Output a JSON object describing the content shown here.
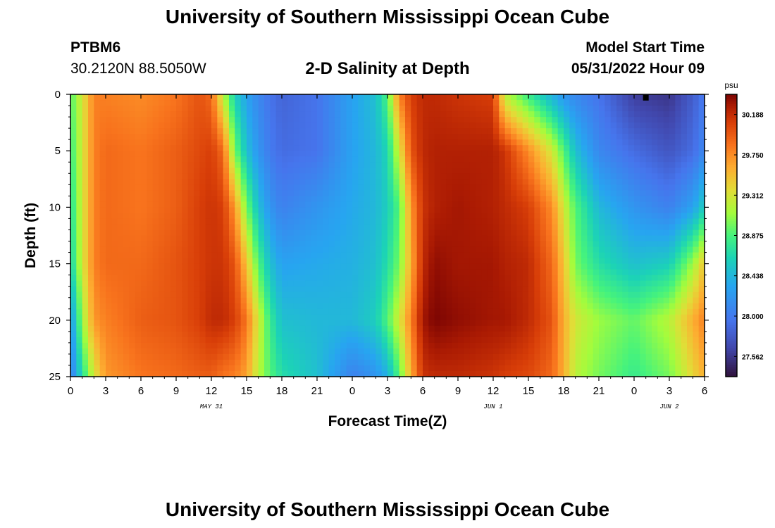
{
  "page": {
    "title_top": "University of Southern Mississippi Ocean Cube",
    "title_bottom": "University of Southern Mississippi Ocean Cube",
    "station": "PTBM6",
    "coordinates": "30.2120N  88.5050W",
    "plot_title": "2-D Salinity at Depth",
    "model_start_label": "Model Start Time",
    "model_start_time": "05/31/2022 Hour 09"
  },
  "chart_data": {
    "type": "heatmap",
    "title": "2-D Salinity at Depth",
    "xlabel": "Forecast Time(Z)",
    "ylabel": "Depth (ft)",
    "x_unit": "hours since 05/31 00Z",
    "xlim": [
      0,
      54
    ],
    "ylim": [
      0,
      25
    ],
    "y_inverted": true,
    "x_ticks": [
      0,
      3,
      6,
      9,
      12,
      15,
      18,
      21,
      24,
      27,
      30,
      33,
      36,
      39,
      42,
      45,
      48,
      51,
      54
    ],
    "x_tick_labels": [
      "0",
      "3",
      "6",
      "9",
      "12",
      "15",
      "18",
      "21",
      "0",
      "3",
      "6",
      "9",
      "12",
      "15",
      "18",
      "21",
      "0",
      "3",
      "6"
    ],
    "y_ticks": [
      0,
      5,
      10,
      15,
      20,
      25
    ],
    "y_tick_labels": [
      "0",
      "5",
      "10",
      "15",
      "20",
      "25"
    ],
    "date_labels": [
      {
        "text": "MAY 31",
        "x": 12
      },
      {
        "text": "JUN 1",
        "x": 36
      },
      {
        "text": "JUN 2",
        "x": 51
      }
    ],
    "colorbar": {
      "unit": "psu",
      "min": 27.343,
      "max": 30.407,
      "ticks": [
        27.562,
        28.0,
        28.438,
        28.875,
        29.312,
        29.75,
        30.188
      ],
      "tick_labels": [
        "27.562",
        "28.000",
        "28.438",
        "28.875",
        "29.312",
        "29.750",
        "30.188"
      ]
    },
    "marker": {
      "x": 49,
      "y": 0.3
    },
    "profiles": [
      {
        "x": 0,
        "values": [
          28.9,
          28.8,
          28.7,
          28.6,
          28.2,
          28.0
        ]
      },
      {
        "x": 1,
        "values": [
          29.3,
          29.3,
          29.3,
          29.3,
          29.1,
          28.7
        ]
      },
      {
        "x": 2,
        "values": [
          29.8,
          29.8,
          29.8,
          29.8,
          29.7,
          29.3
        ]
      },
      {
        "x": 3,
        "values": [
          29.8,
          29.9,
          29.9,
          29.9,
          29.8,
          29.7
        ]
      },
      {
        "x": 6,
        "values": [
          29.75,
          29.85,
          29.85,
          29.9,
          29.95,
          29.85
        ]
      },
      {
        "x": 9,
        "values": [
          29.85,
          29.95,
          29.95,
          30.0,
          30.0,
          29.9
        ]
      },
      {
        "x": 11,
        "values": [
          30.0,
          30.05,
          30.1,
          30.1,
          30.1,
          29.95
        ]
      },
      {
        "x": 12,
        "values": [
          29.9,
          30.1,
          30.15,
          30.15,
          30.2,
          29.95
        ]
      },
      {
        "x": 13,
        "values": [
          29.2,
          29.9,
          30.1,
          30.15,
          30.2,
          29.85
        ]
      },
      {
        "x": 14,
        "values": [
          28.6,
          29.0,
          29.7,
          30.0,
          30.1,
          29.8
        ]
      },
      {
        "x": 15,
        "values": [
          28.3,
          28.5,
          29.0,
          29.5,
          29.85,
          29.65
        ]
      },
      {
        "x": 16,
        "values": [
          28.1,
          28.2,
          28.5,
          28.9,
          29.3,
          29.2
        ]
      },
      {
        "x": 17,
        "values": [
          27.95,
          28.0,
          28.2,
          28.5,
          28.8,
          28.9
        ]
      },
      {
        "x": 18,
        "values": [
          27.85,
          27.9,
          28.05,
          28.3,
          28.5,
          28.7
        ]
      },
      {
        "x": 21,
        "values": [
          27.95,
          27.95,
          28.2,
          28.35,
          28.45,
          28.5
        ]
      },
      {
        "x": 24,
        "values": [
          28.3,
          28.3,
          28.35,
          28.4,
          28.45,
          28.05
        ]
      },
      {
        "x": 26,
        "values": [
          28.5,
          28.45,
          28.45,
          28.5,
          28.6,
          28.2
        ]
      },
      {
        "x": 27,
        "values": [
          28.9,
          28.65,
          28.6,
          28.7,
          28.9,
          28.4
        ]
      },
      {
        "x": 28,
        "values": [
          29.8,
          29.3,
          28.9,
          29.0,
          29.3,
          28.9
        ]
      },
      {
        "x": 29,
        "values": [
          30.1,
          30.0,
          29.7,
          29.6,
          29.8,
          29.6
        ]
      },
      {
        "x": 30,
        "values": [
          30.2,
          30.2,
          30.15,
          30.2,
          30.3,
          30.15
        ]
      },
      {
        "x": 31,
        "values": [
          30.2,
          30.25,
          30.25,
          30.35,
          30.4,
          30.2
        ]
      },
      {
        "x": 33,
        "values": [
          30.15,
          30.25,
          30.3,
          30.3,
          30.35,
          30.2
        ]
      },
      {
        "x": 36,
        "values": [
          30.1,
          30.25,
          30.25,
          30.3,
          30.3,
          30.15
        ]
      },
      {
        "x": 37,
        "values": [
          29.2,
          30.15,
          30.2,
          30.25,
          30.3,
          30.1
        ]
      },
      {
        "x": 39,
        "values": [
          28.8,
          29.75,
          30.1,
          30.2,
          30.2,
          30.05
        ]
      },
      {
        "x": 41,
        "values": [
          28.4,
          29.3,
          29.75,
          29.9,
          30.0,
          29.9
        ]
      },
      {
        "x": 42,
        "values": [
          28.2,
          28.9,
          29.3,
          29.5,
          29.6,
          29.6
        ]
      },
      {
        "x": 43,
        "values": [
          28.1,
          28.5,
          28.9,
          29.0,
          29.3,
          29.2
        ]
      },
      {
        "x": 45,
        "values": [
          27.95,
          28.1,
          28.45,
          28.7,
          29.1,
          29.0
        ]
      },
      {
        "x": 48,
        "values": [
          27.6,
          27.9,
          28.2,
          28.5,
          28.95,
          28.8
        ]
      },
      {
        "x": 51,
        "values": [
          27.55,
          27.75,
          28.05,
          28.6,
          29.2,
          29.0
        ]
      },
      {
        "x": 53,
        "values": [
          27.8,
          27.9,
          28.3,
          29.1,
          29.6,
          29.4
        ]
      },
      {
        "x": 54,
        "values": [
          28.0,
          28.1,
          28.6,
          29.5,
          29.8,
          29.6
        ]
      }
    ]
  }
}
